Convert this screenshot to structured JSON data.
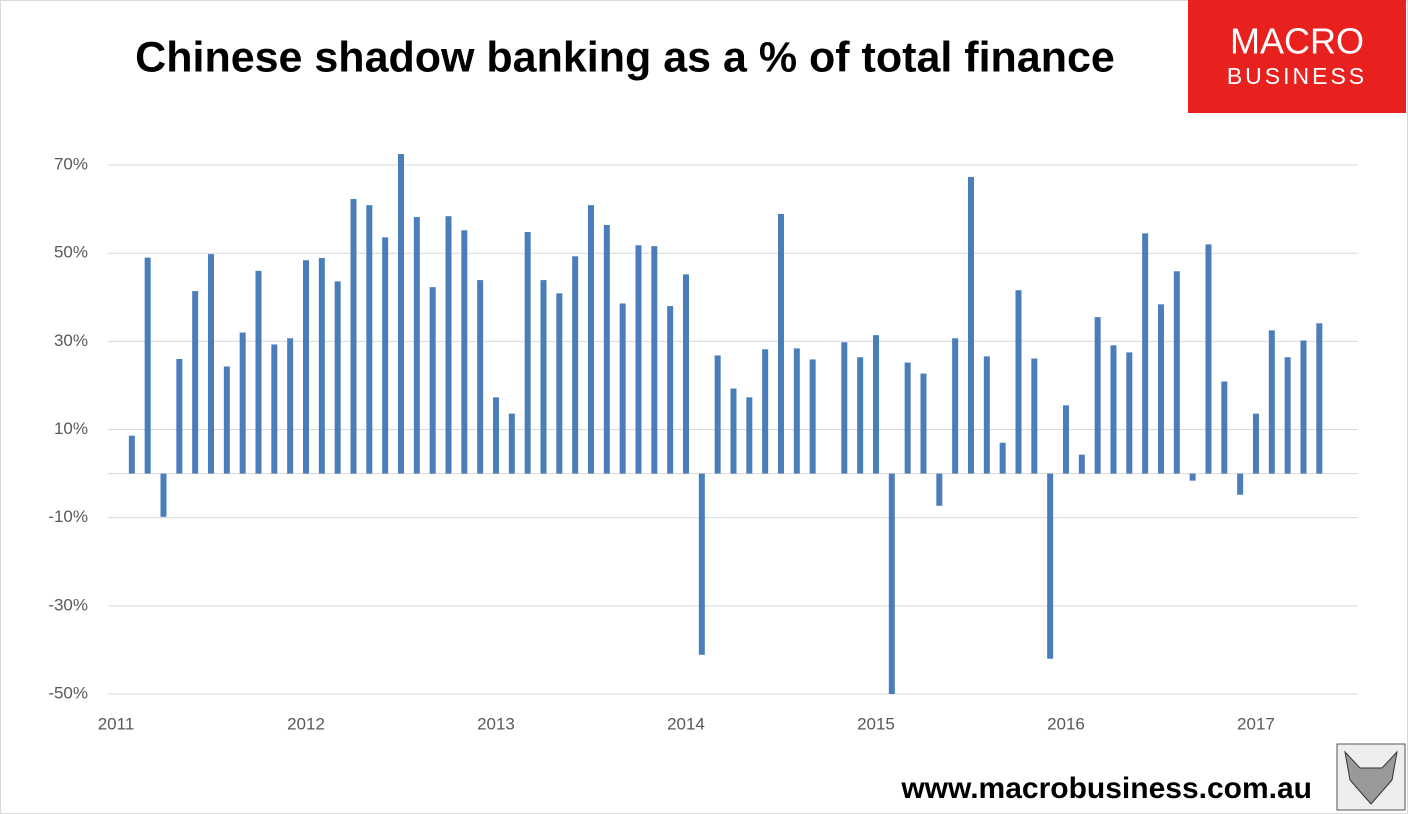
{
  "chart_data": {
    "type": "bar",
    "title": "Chinese shadow banking as a % of total finance",
    "categories": [
      "2011",
      null,
      null,
      null,
      null,
      null,
      null,
      null,
      null,
      null,
      null,
      null,
      "2012",
      null,
      null,
      null,
      null,
      null,
      null,
      null,
      null,
      null,
      null,
      null,
      "2013",
      null,
      null,
      null,
      null,
      null,
      null,
      null,
      null,
      null,
      null,
      null,
      "2014",
      null,
      null,
      null,
      null,
      null,
      null,
      null,
      null,
      null,
      null,
      null,
      "2015",
      null,
      null,
      null,
      null,
      null,
      null,
      null,
      null,
      null,
      null,
      null,
      "2016",
      null,
      null,
      null,
      null,
      null,
      null,
      null,
      null,
      null,
      null,
      null,
      "2017",
      null,
      null,
      null,
      null
    ],
    "values": [
      null,
      8.6,
      49,
      -9.8,
      26,
      41.4,
      49.8,
      24.3,
      32,
      46,
      29.3,
      30.7,
      48.4,
      48.9,
      43.6,
      62.3,
      60.9,
      53.6,
      72.5,
      58.2,
      42.3,
      58.4,
      55.2,
      43.9,
      17.3,
      13.6,
      54.8,
      43.9,
      40.9,
      49.3,
      60.9,
      56.4,
      38.6,
      51.8,
      51.6,
      38,
      45.2,
      -41.1,
      26.8,
      19.3,
      17.3,
      28.2,
      58.9,
      28.4,
      25.9,
      null,
      29.8,
      26.4,
      31.4,
      -50,
      25.2,
      22.7,
      -7.3,
      30.7,
      67.3,
      26.6,
      7,
      41.6,
      26.1,
      -42,
      15.5,
      4.3,
      35.5,
      29.1,
      27.5,
      54.5,
      38.4,
      45.9,
      -1.6,
      52,
      20.9,
      -4.8,
      13.6,
      32.5,
      26.4,
      30.2,
      34.1
    ],
    "color": "#4a7ebb",
    "ylim": [
      -50,
      75
    ],
    "yticks": [
      {
        "value": -50,
        "label": "-50%"
      },
      {
        "value": -30,
        "label": "-30%"
      },
      {
        "value": -10,
        "label": "-10%"
      },
      {
        "value": 10,
        "label": "10%"
      },
      {
        "value": 30,
        "label": "30%"
      },
      {
        "value": 50,
        "label": "50%"
      },
      {
        "value": 70,
        "label": "70%"
      }
    ],
    "grid": true
  },
  "branding": {
    "logo_top": "MACRO",
    "logo_bottom": "BUSINESS",
    "website": "www.macrobusiness.com.au"
  }
}
